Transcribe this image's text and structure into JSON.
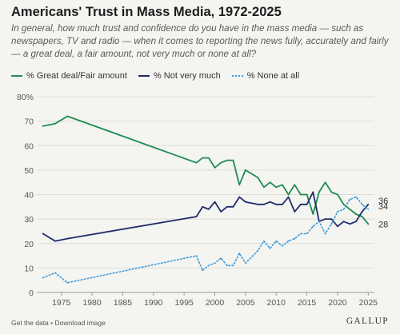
{
  "title": "Americans' Trust in Mass Media, 1972-2025",
  "subtitle": "In general, how much trust and confidence do you have in the mass media — such as newspapers, TV and radio — when it comes to reporting the news fully, accurately and fairly — a great deal, a fair amount, not very much or none at all?",
  "footer": {
    "get_data": "Get the data",
    "separator": "•",
    "download": "Download image",
    "brand": "GALLUP"
  },
  "chart_data": {
    "type": "line",
    "title": "Americans' Trust in Mass Media, 1972-2025",
    "xlabel": "",
    "ylabel": "",
    "xlim": [
      1971,
      2026
    ],
    "ylim": [
      0,
      80
    ],
    "x_ticks": [
      1975,
      1980,
      1985,
      1990,
      1995,
      2000,
      2005,
      2010,
      2015,
      2020,
      2025
    ],
    "y_ticks": [
      0,
      10,
      20,
      30,
      40,
      50,
      60,
      70,
      80
    ],
    "y_tick_labels": [
      "0",
      "10",
      "20",
      "30",
      "40",
      "50",
      "60",
      "70",
      "80%"
    ],
    "grid": "horizontal",
    "legend_position": "top-left",
    "series": [
      {
        "name": "% Great deal/Fair amount",
        "color": "#1e8c50",
        "style": "solid",
        "end_label": "28",
        "points": [
          [
            1972,
            68
          ],
          [
            1974,
            69
          ],
          [
            1976,
            72
          ],
          [
            1997,
            53
          ],
          [
            1998,
            55
          ],
          [
            1999,
            55
          ],
          [
            2000,
            51
          ],
          [
            2001,
            53
          ],
          [
            2002,
            54
          ],
          [
            2003,
            54
          ],
          [
            2004,
            44
          ],
          [
            2005,
            50
          ],
          [
            2007,
            47
          ],
          [
            2008,
            43
          ],
          [
            2009,
            45
          ],
          [
            2010,
            43
          ],
          [
            2011,
            44
          ],
          [
            2012,
            40
          ],
          [
            2013,
            44
          ],
          [
            2014,
            40
          ],
          [
            2015,
            40
          ],
          [
            2016,
            32
          ],
          [
            2017,
            41
          ],
          [
            2018,
            45
          ],
          [
            2019,
            41
          ],
          [
            2020,
            40
          ],
          [
            2021,
            36
          ],
          [
            2022,
            34
          ],
          [
            2023,
            32
          ],
          [
            2024,
            31
          ],
          [
            2025,
            28
          ]
        ]
      },
      {
        "name": "% Not very much",
        "color": "#1f2d6b",
        "style": "solid",
        "end_label": "36",
        "points": [
          [
            1972,
            24
          ],
          [
            1974,
            21
          ],
          [
            1976,
            22
          ],
          [
            1997,
            31
          ],
          [
            1998,
            35
          ],
          [
            1999,
            34
          ],
          [
            2000,
            37
          ],
          [
            2001,
            33
          ],
          [
            2002,
            35
          ],
          [
            2003,
            35
          ],
          [
            2004,
            39
          ],
          [
            2005,
            37
          ],
          [
            2007,
            36
          ],
          [
            2008,
            36
          ],
          [
            2009,
            37
          ],
          [
            2010,
            36
          ],
          [
            2011,
            36
          ],
          [
            2012,
            39
          ],
          [
            2013,
            33
          ],
          [
            2014,
            36
          ],
          [
            2015,
            36
          ],
          [
            2016,
            41
          ],
          [
            2017,
            29
          ],
          [
            2018,
            30
          ],
          [
            2019,
            30
          ],
          [
            2020,
            27
          ],
          [
            2021,
            29
          ],
          [
            2022,
            28
          ],
          [
            2023,
            29
          ],
          [
            2024,
            33
          ],
          [
            2025,
            36
          ]
        ]
      },
      {
        "name": "% None at all",
        "color": "#3d9ad9",
        "style": "dotted",
        "end_label": "34",
        "points": [
          [
            1972,
            6
          ],
          [
            1974,
            8
          ],
          [
            1976,
            4
          ],
          [
            1997,
            15
          ],
          [
            1998,
            9
          ],
          [
            1999,
            11
          ],
          [
            2000,
            12
          ],
          [
            2001,
            14
          ],
          [
            2002,
            11
          ],
          [
            2003,
            11
          ],
          [
            2004,
            16
          ],
          [
            2005,
            12
          ],
          [
            2007,
            17
          ],
          [
            2008,
            21
          ],
          [
            2009,
            18
          ],
          [
            2010,
            21
          ],
          [
            2011,
            19
          ],
          [
            2012,
            21
          ],
          [
            2013,
            22
          ],
          [
            2014,
            24
          ],
          [
            2015,
            24
          ],
          [
            2016,
            27
          ],
          [
            2017,
            29
          ],
          [
            2018,
            24
          ],
          [
            2019,
            28
          ],
          [
            2020,
            33
          ],
          [
            2021,
            34
          ],
          [
            2022,
            38
          ],
          [
            2023,
            39
          ],
          [
            2024,
            36
          ],
          [
            2025,
            34
          ]
        ]
      }
    ]
  }
}
